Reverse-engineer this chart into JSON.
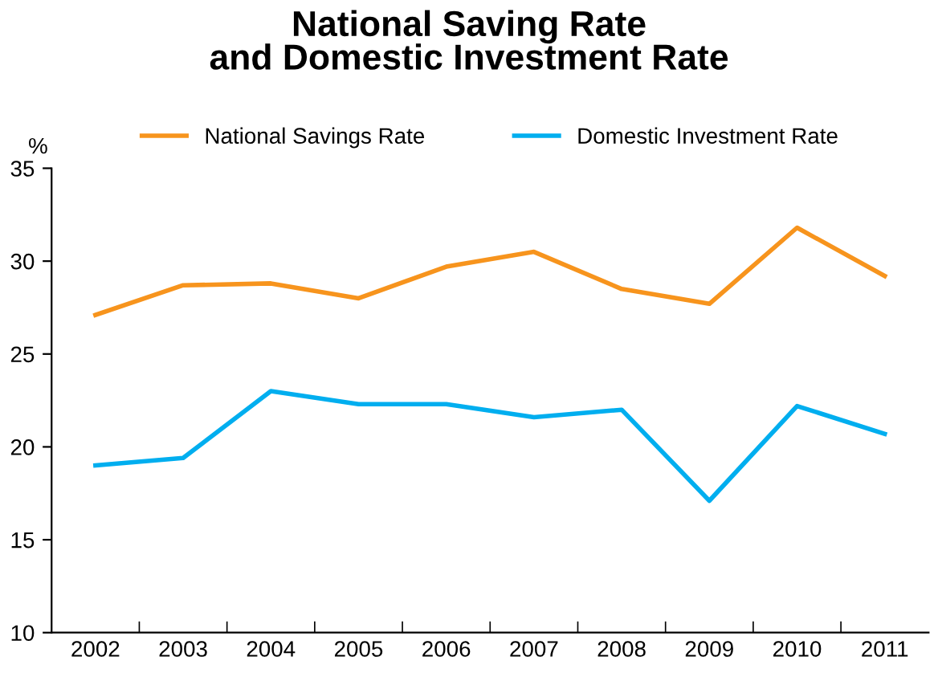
{
  "chart_data": {
    "type": "line",
    "title": "National Saving Rate\nand Domestic Investment Rate",
    "ylabel": "%",
    "categories": [
      "2002",
      "2003",
      "2004",
      "2005",
      "2006",
      "2007",
      "2008",
      "2009",
      "2010",
      "2011"
    ],
    "series": [
      {
        "name": "National Savings Rate",
        "color": "#f7941d",
        "values": [
          27.1,
          28.7,
          28.8,
          28.0,
          29.7,
          30.5,
          28.5,
          27.7,
          31.8,
          29.2
        ]
      },
      {
        "name": "Domestic Investment Rate",
        "color": "#00aeef",
        "values": [
          19.0,
          19.4,
          23.0,
          22.3,
          22.3,
          21.6,
          22.0,
          17.1,
          22.2,
          20.7
        ]
      }
    ],
    "ylim": [
      10,
      35
    ],
    "yticks": [
      10,
      15,
      20,
      25,
      30,
      35
    ],
    "grid": false,
    "legend": "top",
    "marker": "none",
    "line_style": "solid"
  }
}
